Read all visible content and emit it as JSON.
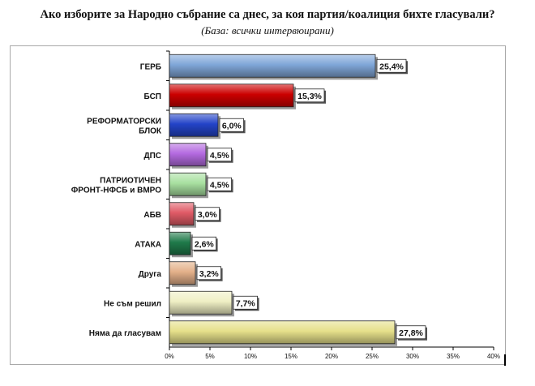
{
  "title": "Ако изборите за Народно събрание са днес, за коя партия/коалиция бихте гласували?",
  "subtitle": "(База: всички интервюирани)",
  "chart_data": {
    "type": "bar",
    "orientation": "horizontal",
    "categories": [
      [
        "ГЕРБ"
      ],
      [
        "БСП"
      ],
      [
        "РЕФОРМАТОРСКИ",
        "БЛОК"
      ],
      [
        "ДПС"
      ],
      [
        "ПАТРИОТИЧЕН",
        "ФРОНТ-НФСБ и ВМРО"
      ],
      [
        "АБВ"
      ],
      [
        "АТАКА"
      ],
      [
        "Друга"
      ],
      [
        "Не съм решил"
      ],
      [
        "Няма да гласувам"
      ]
    ],
    "values": [
      25.4,
      15.3,
      6.0,
      4.5,
      4.5,
      3.0,
      2.6,
      3.2,
      7.7,
      27.8
    ],
    "value_labels": [
      "25,4%",
      "15,3%",
      "6,0%",
      "4,5%",
      "4,5%",
      "3,0%",
      "2,6%",
      "3,2%",
      "7,7%",
      "27,8%"
    ],
    "bar_colors": [
      "#7fa6d8",
      "#cc0000",
      "#2343c8",
      "#b46ae0",
      "#a8e0a0",
      "#e05a66",
      "#1f7a4a",
      "#e3b089",
      "#efefc4",
      "#e6e08a"
    ],
    "xlim": [
      0,
      40
    ],
    "xticks": [
      "0%",
      "5%",
      "10%",
      "15%",
      "20%",
      "25%",
      "30%",
      "35%",
      "40%"
    ],
    "grid": false,
    "legend": "none"
  }
}
